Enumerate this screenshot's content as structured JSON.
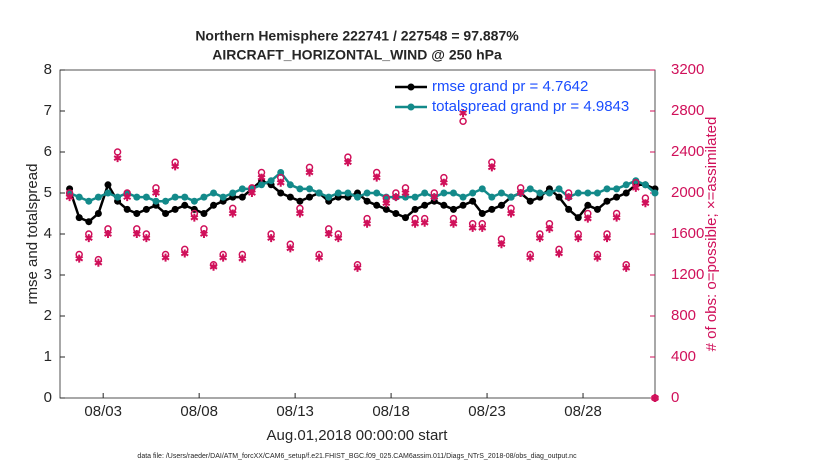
{
  "chart_data": {
    "type": "line",
    "title": [
      "Northern Hemisphere 222741 / 227548 = 97.887%",
      "AIRCRAFT_HORIZONTAL_WIND @ 250 hPa"
    ],
    "xlabel": "Aug.01,2018 00:00:00 start",
    "ylabel": "rmse and totalspread",
    "y2label": "# of obs: o=possible; ×=assimilated",
    "footnote": "data file: /Users/raeder/DAI/ATM_forcXX/CAM6_setup/f.e21.FHIST_BGC.f09_025.CAM6assim.011/Diags_NTrS_2018-08/obs_diag_output.nc",
    "x": [
      0.25,
      0.75,
      1.25,
      1.75,
      2.25,
      2.75,
      3.25,
      3.75,
      4.25,
      4.75,
      5.25,
      5.75,
      6.25,
      6.75,
      7.25,
      7.75,
      8.25,
      8.75,
      9.25,
      9.75,
      10.25,
      10.75,
      11.25,
      11.75,
      12.25,
      12.75,
      13.25,
      13.75,
      14.25,
      14.75,
      15.25,
      15.75,
      16.25,
      16.75,
      17.25,
      17.75,
      18.25,
      18.75,
      19.25,
      19.75,
      20.25,
      20.75,
      21.25,
      21.75,
      22.25,
      22.75,
      23.25,
      23.75,
      24.25,
      24.75,
      25.25,
      25.75,
      26.25,
      26.75,
      27.25,
      27.75,
      28.25,
      28.75,
      29.25,
      29.75,
      30.25,
      30.75
    ],
    "xlim": [
      -0.25,
      30.75
    ],
    "xticks": [
      {
        "value": 2,
        "label": "08/03"
      },
      {
        "value": 7,
        "label": "08/08"
      },
      {
        "value": 12,
        "label": "08/13"
      },
      {
        "value": 17,
        "label": "08/18"
      },
      {
        "value": 22,
        "label": "08/23"
      },
      {
        "value": 27,
        "label": "08/28"
      }
    ],
    "ylim": [
      0,
      8
    ],
    "yticks": [
      0,
      1,
      2,
      3,
      4,
      5,
      6,
      7,
      8
    ],
    "y2lim": [
      0,
      3200
    ],
    "y2ticks": [
      0,
      400,
      800,
      1200,
      1600,
      2000,
      2400,
      2800,
      3200
    ],
    "legend": "upper right",
    "series": [
      {
        "name": "rmse grand pr = 4.7642",
        "color": "#000000",
        "marker": "dot",
        "values": [
          5.1,
          4.4,
          4.3,
          4.5,
          5.2,
          4.8,
          4.6,
          4.5,
          4.6,
          4.7,
          4.5,
          4.6,
          4.7,
          4.6,
          4.5,
          4.7,
          4.8,
          4.9,
          4.9,
          5.1,
          5.3,
          5.2,
          5.0,
          4.9,
          4.8,
          4.9,
          5.0,
          4.8,
          4.9,
          4.9,
          5.0,
          4.8,
          4.7,
          4.6,
          4.5,
          4.4,
          4.6,
          4.7,
          4.8,
          4.7,
          4.6,
          4.7,
          4.8,
          4.5,
          4.6,
          4.7,
          4.9,
          5.0,
          4.8,
          4.9,
          5.1,
          4.9,
          4.6,
          4.4,
          4.7,
          4.6,
          4.8,
          4.9,
          5.0,
          5.2,
          5.2,
          5.1
        ]
      },
      {
        "name": "totalspread grand pr = 4.9843",
        "color": "#138a8a",
        "marker": "dot",
        "values": [
          5.0,
          4.9,
          4.8,
          4.9,
          5.0,
          4.9,
          5.0,
          4.9,
          4.9,
          4.8,
          4.8,
          4.9,
          4.9,
          4.8,
          4.9,
          5.0,
          4.9,
          5.0,
          5.1,
          5.1,
          5.2,
          5.3,
          5.5,
          5.2,
          5.1,
          5.1,
          5.0,
          4.9,
          5.0,
          5.0,
          4.9,
          5.0,
          5.0,
          4.9,
          4.9,
          4.9,
          4.9,
          5.0,
          4.9,
          5.0,
          5.0,
          4.9,
          5.0,
          5.1,
          4.9,
          5.0,
          4.9,
          5.0,
          5.1,
          5.0,
          5.0,
          5.1,
          4.9,
          5.0,
          5.0,
          5.0,
          5.1,
          5.1,
          5.2,
          5.3,
          5.2,
          5.0
        ]
      },
      {
        "axis": "y2",
        "color": "#d0105a",
        "marker": "circle",
        "values": [
          2000,
          1400,
          1600,
          1350,
          1650,
          2400,
          2000,
          1650,
          1600,
          2050,
          1400,
          2300,
          1450,
          1800,
          1650,
          1300,
          1400,
          1850,
          1400,
          2050,
          2200,
          1600,
          2150,
          1500,
          1850,
          2250,
          1400,
          1650,
          1600,
          2350,
          1300,
          1750,
          2200,
          1950,
          2000,
          2050,
          1750,
          1750,
          2000,
          2150,
          1750,
          2700,
          1700,
          1700,
          2300,
          1550,
          1850,
          2050,
          1400,
          1600,
          1700,
          1450,
          2000,
          1600,
          1800,
          1400,
          1600,
          1800,
          1300,
          2100,
          1950,
          0
        ]
      },
      {
        "axis": "y2",
        "color": "#d0105a",
        "marker": "star",
        "values": [
          1960,
          1360,
          1560,
          1320,
          1600,
          2340,
          1960,
          1600,
          1560,
          2000,
          1370,
          2260,
          1410,
          1760,
          1600,
          1280,
          1370,
          1800,
          1360,
          2000,
          2150,
          1560,
          2100,
          1460,
          1800,
          2200,
          1370,
          1600,
          1560,
          2300,
          1270,
          1700,
          2150,
          1900,
          1960,
          2000,
          1700,
          1710,
          1960,
          2100,
          1700,
          2780,
          1660,
          1660,
          2250,
          1500,
          1800,
          2000,
          1370,
          1560,
          1650,
          1410,
          1960,
          1560,
          1750,
          1370,
          1560,
          1760,
          1270,
          2050,
          1900,
          0
        ]
      }
    ]
  }
}
